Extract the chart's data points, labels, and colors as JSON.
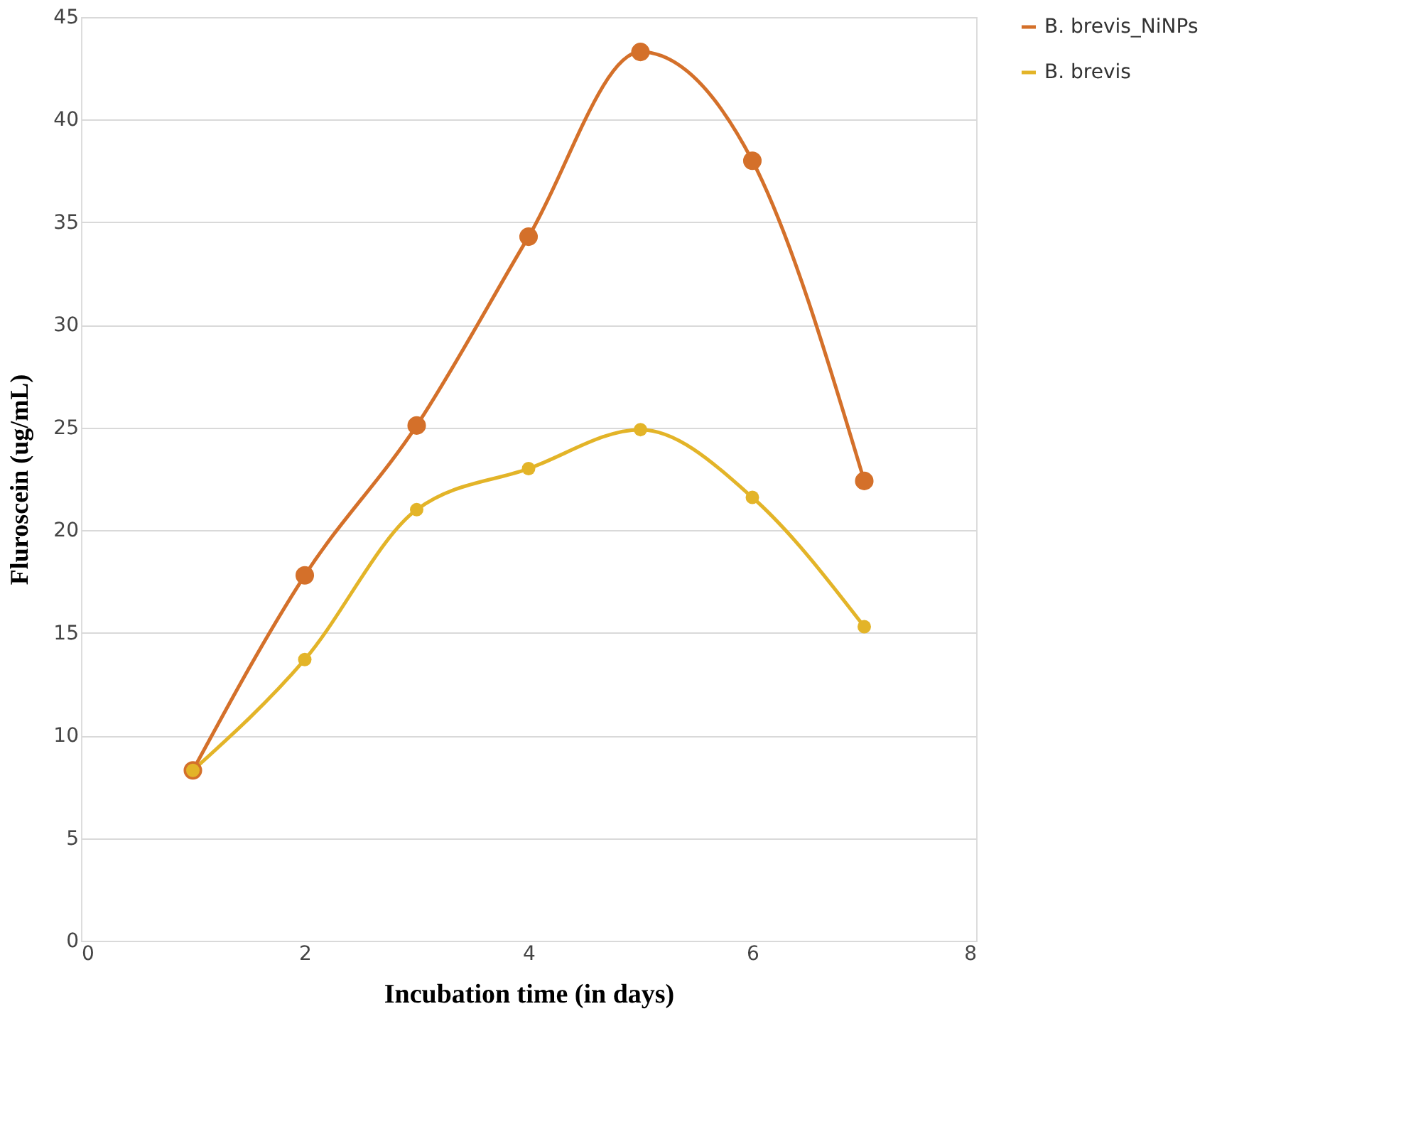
{
  "chart_data": {
    "type": "line",
    "xlabel": "Incubation time (in days)",
    "ylabel": "Fluroscein (ug/mL)",
    "x": [
      1,
      2,
      3,
      4,
      5,
      6,
      7
    ],
    "series": [
      {
        "name": "B. brevis_NiNPs",
        "color": "#d4702a",
        "values": [
          8.3,
          17.8,
          25.1,
          34.3,
          43.3,
          38.0,
          22.4
        ]
      },
      {
        "name": "B. brevis",
        "color": "#e3b428",
        "values": [
          8.3,
          13.7,
          21.0,
          23.0,
          24.9,
          21.6,
          15.3
        ]
      }
    ],
    "xlim": [
      0,
      8
    ],
    "xticks": [
      0,
      2,
      4,
      6,
      8
    ],
    "ylim": [
      0,
      45
    ],
    "yticks": [
      0,
      5,
      10,
      15,
      20,
      25,
      30,
      35,
      40,
      45
    ],
    "grid": "y",
    "legend": "right",
    "marker": "circle",
    "line_style": "solid"
  }
}
